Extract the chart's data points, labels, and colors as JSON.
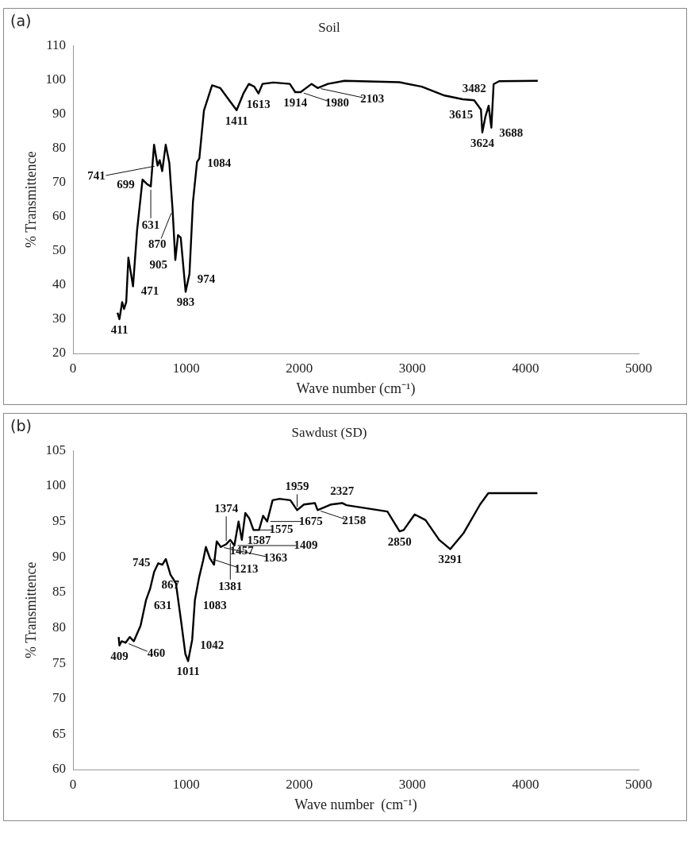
{
  "chart_data": [
    {
      "type": "line",
      "title": "Soil",
      "xlabel": "Wave number (cm⁻¹)",
      "ylabel": "% Transmittence",
      "xlim": [
        0,
        5000
      ],
      "xticks": [
        0,
        1000,
        2000,
        3000,
        4000,
        5000
      ],
      "ylim": [
        20,
        110
      ],
      "yticks": [
        20,
        30,
        40,
        50,
        60,
        70,
        80,
        90,
        100,
        110
      ],
      "series": [
        {
          "color": "#000000",
          "x": [
            393,
            410,
            434,
            451,
            470,
            489,
            530,
            566,
            614,
            651,
            687,
            716,
            747,
            766,
            788,
            819,
            851,
            880,
            904,
            928,
            952,
            995,
            1029,
            1060,
            1096,
            1116,
            1157,
            1229,
            1301,
            1374,
            1446,
            1506,
            1554,
            1602,
            1639,
            1675,
            1771,
            1916,
            1964,
            2012,
            2109,
            2162,
            2253,
            2400,
            2883,
            3083,
            3284,
            3445,
            3546,
            3606,
            3618,
            3646,
            3674,
            3698,
            3718,
            3766,
            4108
          ],
          "values": [
            31.9,
            30,
            35,
            33,
            35,
            48,
            39.6,
            56,
            70.8,
            69.6,
            68.8,
            81,
            74.9,
            76.5,
            73.3,
            81,
            75.7,
            61.9,
            47.3,
            54.6,
            53.8,
            38,
            43.3,
            64.3,
            76,
            77,
            91,
            98.4,
            97.6,
            94.3,
            91.1,
            96,
            98.8,
            98,
            96,
            98.8,
            99.2,
            98.8,
            96.4,
            96.4,
            98.8,
            97.6,
            98.8,
            99.7,
            99.3,
            98,
            95.4,
            94.3,
            94,
            91.3,
            84.6,
            89.3,
            92.4,
            86,
            98.7,
            99.6,
            99.7
          ]
        }
      ],
      "annotations": [
        "(a)",
        {
          "text": "411",
          "x": 410,
          "y": 30
        },
        {
          "text": "471",
          "x": 530,
          "y": 39.6
        },
        {
          "text": "699",
          "x": 614,
          "y": 70.8
        },
        {
          "text": "631",
          "x": 687,
          "y": 68.8
        },
        {
          "text": "741",
          "x": 747,
          "y": 74.9
        },
        {
          "text": "870",
          "x": 880,
          "y": 61.9
        },
        {
          "text": "905",
          "x": 904,
          "y": 47.3
        },
        {
          "text": "983",
          "x": 995,
          "y": 38
        },
        {
          "text": "974",
          "x": 1029,
          "y": 43.3
        },
        {
          "text": "1084",
          "x": 1116,
          "y": 77
        },
        {
          "text": "1411",
          "x": 1446,
          "y": 91.1
        },
        {
          "text": "1613",
          "x": 1639,
          "y": 96
        },
        {
          "text": "1914",
          "x": 1964,
          "y": 96.4
        },
        {
          "text": "1980",
          "x": 2012,
          "y": 96.4
        },
        {
          "text": "2103",
          "x": 2162,
          "y": 97.6
        },
        {
          "text": "3482",
          "x": 3546,
          "y": 94
        },
        {
          "text": "3615",
          "x": 3606,
          "y": 91.3
        },
        {
          "text": "3624",
          "x": 3618,
          "y": 84.6
        },
        {
          "text": "3688",
          "x": 3698,
          "y": 86
        }
      ]
    },
    {
      "type": "line",
      "title": "Sawdust (SD)",
      "xlabel": "Wave number  (cm⁻¹)",
      "ylabel": "% Transmittence",
      "xlim": [
        0,
        5000
      ],
      "xticks": [
        0,
        1000,
        2000,
        3000,
        4000,
        5000
      ],
      "ylim": [
        60,
        105
      ],
      "yticks": [
        60,
        65,
        70,
        75,
        80,
        85,
        90,
        95,
        100,
        105
      ],
      "series": [
        {
          "color": "#000000",
          "x": [
            403,
            410,
            429,
            465,
            501,
            537,
            597,
            645,
            681,
            717,
            753,
            789,
            820,
            861,
            909,
            957,
            993,
            1017,
            1053,
            1077,
            1114,
            1150,
            1174,
            1210,
            1246,
            1270,
            1306,
            1354,
            1390,
            1426,
            1463,
            1492,
            1523,
            1559,
            1595,
            1644,
            1680,
            1716,
            1764,
            1825,
            1921,
            1981,
            2041,
            2138,
            2162,
            2282,
            2379,
            2417,
            2779,
            2887,
            2923,
            3020,
            3116,
            3237,
            3334,
            3454,
            3598,
            3671,
            4105
          ],
          "values": [
            78.7,
            77.5,
            78.1,
            77.9,
            78.7,
            78.1,
            80.3,
            83.9,
            85.5,
            87.9,
            89.1,
            88.9,
            89.7,
            87.5,
            86.3,
            80.7,
            76.3,
            75.3,
            78.3,
            83.9,
            87.1,
            89.5,
            91.4,
            89.8,
            88.9,
            92.2,
            91.4,
            91.8,
            92.4,
            91.6,
            95,
            92.4,
            96.2,
            95.4,
            93.8,
            93.8,
            95.8,
            95,
            98,
            98.2,
            98,
            96.6,
            97.4,
            97.6,
            96.6,
            97.4,
            97.6,
            97.3,
            96.4,
            93.6,
            93.8,
            96,
            95.2,
            92.4,
            91.1,
            93.4,
            97.4,
            99,
            99
          ]
        }
      ],
      "annotations": [
        "(b)",
        {
          "text": "409",
          "x": 410,
          "y": 77.5
        },
        {
          "text": "460",
          "x": 465,
          "y": 77.9
        },
        {
          "text": "631",
          "x": 645,
          "y": 83.9
        },
        {
          "text": "745",
          "x": 753,
          "y": 89.1
        },
        {
          "text": "867",
          "x": 861,
          "y": 87.5
        },
        {
          "text": "1011",
          "x": 1017,
          "y": 75.3
        },
        {
          "text": "1042",
          "x": 1053,
          "y": 78.3
        },
        {
          "text": "1083",
          "x": 1077,
          "y": 83.9
        },
        {
          "text": "1213",
          "x": 1210,
          "y": 89.8
        },
        {
          "text": "1363",
          "x": 1306,
          "y": 91.4
        },
        {
          "text": "1374",
          "x": 1354,
          "y": 91.8
        },
        {
          "text": "1381",
          "x": 1390,
          "y": 92.4
        },
        {
          "text": "1409",
          "x": 1426,
          "y": 91.6
        },
        {
          "text": "1457",
          "x": 1492,
          "y": 92.4
        },
        {
          "text": "1575",
          "x": 1595,
          "y": 93.8
        },
        {
          "text": "1587",
          "x": 1644,
          "y": 93.8
        },
        {
          "text": "1675",
          "x": 1716,
          "y": 95
        },
        {
          "text": "1959",
          "x": 1981,
          "y": 96.6
        },
        {
          "text": "2158",
          "x": 2162,
          "y": 96.6
        },
        {
          "text": "2327",
          "x": 2379,
          "y": 97.6
        },
        {
          "text": "2850",
          "x": 2887,
          "y": 93.6
        },
        {
          "text": "3291",
          "x": 3334,
          "y": 91.1
        }
      ]
    }
  ]
}
